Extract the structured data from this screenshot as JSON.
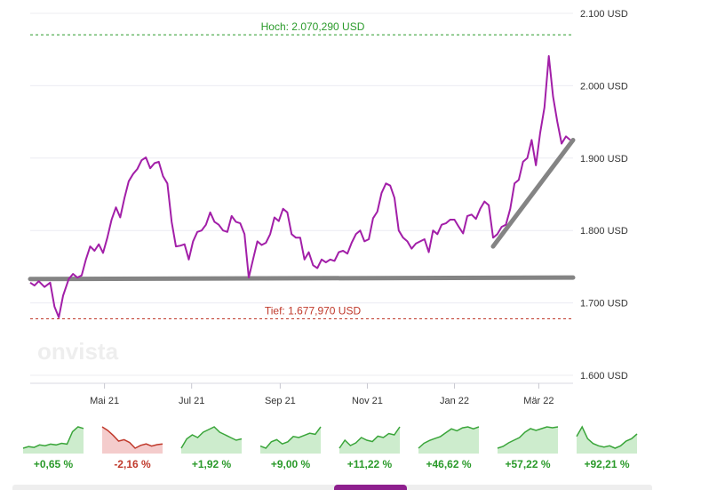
{
  "chart_data": {
    "type": "line",
    "watermark": "onvista",
    "y_unit": "USD",
    "ylim": [
      1600,
      2100
    ],
    "y_ticks": [
      "2.100 USD",
      "2.000 USD",
      "1.900 USD",
      "1.800 USD",
      "1.700 USD",
      "1.600 USD"
    ],
    "y_tick_values": [
      2100,
      2000,
      1900,
      1800,
      1700,
      1600
    ],
    "x_ticks": [
      "Mai 21",
      "Jul 21",
      "Sep 21",
      "Nov 21",
      "Jan 22",
      "Mär 22"
    ],
    "x_tick_dates": [
      "2021-05-01",
      "2021-07-01",
      "2021-09-01",
      "2021-11-01",
      "2022-01-01",
      "2022-03-01"
    ],
    "xlim": [
      "2021-03-10",
      "2022-03-25"
    ],
    "high": {
      "label": "Hoch: 2.070,290 USD",
      "value": 2070.29,
      "color": "#2a9a2a"
    },
    "low": {
      "label": "Tief: 1.677,970 USD",
      "value": 1677.97,
      "color": "#c0392b"
    },
    "series": [
      {
        "color": "#a21fa8",
        "points": [
          [
            "2021-03-10",
            1728
          ],
          [
            "2021-03-13",
            1724
          ],
          [
            "2021-03-16",
            1730
          ],
          [
            "2021-03-20",
            1722
          ],
          [
            "2021-03-24",
            1728
          ],
          [
            "2021-03-27",
            1695
          ],
          [
            "2021-03-30",
            1680
          ],
          [
            "2021-04-02",
            1710
          ],
          [
            "2021-04-06",
            1733
          ],
          [
            "2021-04-09",
            1740
          ],
          [
            "2021-04-12",
            1735
          ],
          [
            "2021-04-15",
            1738
          ],
          [
            "2021-04-18",
            1760
          ],
          [
            "2021-04-21",
            1778
          ],
          [
            "2021-04-24",
            1772
          ],
          [
            "2021-04-27",
            1781
          ],
          [
            "2021-04-30",
            1769
          ],
          [
            "2021-05-03",
            1790
          ],
          [
            "2021-05-06",
            1815
          ],
          [
            "2021-05-09",
            1832
          ],
          [
            "2021-05-12",
            1818
          ],
          [
            "2021-05-15",
            1845
          ],
          [
            "2021-05-18",
            1868
          ],
          [
            "2021-05-21",
            1878
          ],
          [
            "2021-05-24",
            1885
          ],
          [
            "2021-05-27",
            1897
          ],
          [
            "2021-05-30",
            1901
          ],
          [
            "2021-06-02",
            1886
          ],
          [
            "2021-06-05",
            1893
          ],
          [
            "2021-06-08",
            1895
          ],
          [
            "2021-06-11",
            1875
          ],
          [
            "2021-06-14",
            1865
          ],
          [
            "2021-06-17",
            1812
          ],
          [
            "2021-06-20",
            1778
          ],
          [
            "2021-06-23",
            1779
          ],
          [
            "2021-06-26",
            1781
          ],
          [
            "2021-06-29",
            1760
          ],
          [
            "2021-07-02",
            1785
          ],
          [
            "2021-07-05",
            1798
          ],
          [
            "2021-07-08",
            1800
          ],
          [
            "2021-07-11",
            1808
          ],
          [
            "2021-07-14",
            1825
          ],
          [
            "2021-07-17",
            1812
          ],
          [
            "2021-07-20",
            1808
          ],
          [
            "2021-07-23",
            1800
          ],
          [
            "2021-07-26",
            1798
          ],
          [
            "2021-07-29",
            1820
          ],
          [
            "2021-08-01",
            1812
          ],
          [
            "2021-08-04",
            1810
          ],
          [
            "2021-08-07",
            1795
          ],
          [
            "2021-08-10",
            1735
          ],
          [
            "2021-08-13",
            1760
          ],
          [
            "2021-08-16",
            1785
          ],
          [
            "2021-08-19",
            1780
          ],
          [
            "2021-08-22",
            1783
          ],
          [
            "2021-08-25",
            1795
          ],
          [
            "2021-08-28",
            1818
          ],
          [
            "2021-08-31",
            1813
          ],
          [
            "2021-09-03",
            1830
          ],
          [
            "2021-09-06",
            1825
          ],
          [
            "2021-09-09",
            1795
          ],
          [
            "2021-09-12",
            1790
          ],
          [
            "2021-09-15",
            1790
          ],
          [
            "2021-09-18",
            1760
          ],
          [
            "2021-09-21",
            1770
          ],
          [
            "2021-09-24",
            1752
          ],
          [
            "2021-09-27",
            1748
          ],
          [
            "2021-09-30",
            1760
          ],
          [
            "2021-10-03",
            1756
          ],
          [
            "2021-10-06",
            1760
          ],
          [
            "2021-10-09",
            1758
          ],
          [
            "2021-10-12",
            1770
          ],
          [
            "2021-10-15",
            1772
          ],
          [
            "2021-10-18",
            1768
          ],
          [
            "2021-10-21",
            1783
          ],
          [
            "2021-10-24",
            1795
          ],
          [
            "2021-10-27",
            1800
          ],
          [
            "2021-10-30",
            1785
          ],
          [
            "2021-11-02",
            1788
          ],
          [
            "2021-11-05",
            1817
          ],
          [
            "2021-11-08",
            1826
          ],
          [
            "2021-11-11",
            1852
          ],
          [
            "2021-11-14",
            1865
          ],
          [
            "2021-11-17",
            1862
          ],
          [
            "2021-11-20",
            1845
          ],
          [
            "2021-11-23",
            1800
          ],
          [
            "2021-11-26",
            1790
          ],
          [
            "2021-11-29",
            1785
          ],
          [
            "2021-12-02",
            1775
          ],
          [
            "2021-12-05",
            1782
          ],
          [
            "2021-12-08",
            1785
          ],
          [
            "2021-12-11",
            1788
          ],
          [
            "2021-12-14",
            1770
          ],
          [
            "2021-12-17",
            1800
          ],
          [
            "2021-12-20",
            1795
          ],
          [
            "2021-12-23",
            1808
          ],
          [
            "2021-12-26",
            1810
          ],
          [
            "2021-12-29",
            1815
          ],
          [
            "2022-01-01",
            1815
          ],
          [
            "2022-01-04",
            1805
          ],
          [
            "2022-01-07",
            1796
          ],
          [
            "2022-01-10",
            1820
          ],
          [
            "2022-01-13",
            1822
          ],
          [
            "2022-01-16",
            1816
          ],
          [
            "2022-01-19",
            1830
          ],
          [
            "2022-01-22",
            1840
          ],
          [
            "2022-01-25",
            1835
          ],
          [
            "2022-01-28",
            1790
          ],
          [
            "2022-01-31",
            1795
          ],
          [
            "2022-02-03",
            1805
          ],
          [
            "2022-02-06",
            1808
          ],
          [
            "2022-02-09",
            1830
          ],
          [
            "2022-02-12",
            1865
          ],
          [
            "2022-02-15",
            1870
          ],
          [
            "2022-02-18",
            1895
          ],
          [
            "2022-02-21",
            1900
          ],
          [
            "2022-02-24",
            1925
          ],
          [
            "2022-02-27",
            1890
          ],
          [
            "2022-03-02",
            1935
          ],
          [
            "2022-03-05",
            1970
          ],
          [
            "2022-03-08",
            2041
          ],
          [
            "2022-03-11",
            1985
          ],
          [
            "2022-03-14",
            1950
          ],
          [
            "2022-03-17",
            1920
          ],
          [
            "2022-03-20",
            1930
          ],
          [
            "2022-03-23",
            1925
          ]
        ]
      }
    ],
    "trend_lines": [
      {
        "from": [
          "2021-03-10",
          1733
        ],
        "to": [
          "2022-03-25",
          1735
        ],
        "color": "#777777"
      },
      {
        "from": [
          "2022-01-28",
          1778
        ],
        "to": [
          "2022-03-25",
          1925
        ],
        "color": "#777777"
      }
    ]
  },
  "period_sparks": [
    {
      "label": "+0,65 %",
      "trend": "up",
      "shape": [
        40,
        42,
        41,
        44,
        43,
        45,
        44,
        46,
        45,
        60,
        66,
        64
      ]
    },
    {
      "label": "-2,16 %",
      "trend": "down",
      "shape": [
        60,
        55,
        48,
        40,
        42,
        38,
        30,
        34,
        36,
        33,
        35,
        36
      ]
    },
    {
      "label": "+1,92 %",
      "trend": "up",
      "shape": [
        48,
        55,
        58,
        56,
        60,
        62,
        64,
        60,
        58,
        56,
        54,
        55
      ]
    },
    {
      "label": "+9,00 %",
      "trend": "up",
      "shape": [
        46,
        44,
        50,
        52,
        48,
        50,
        55,
        54,
        56,
        58,
        57,
        64
      ]
    },
    {
      "label": "+11,22 %",
      "trend": "up",
      "shape": [
        44,
        50,
        46,
        48,
        52,
        50,
        49,
        53,
        52,
        55,
        54,
        60
      ]
    },
    {
      "label": "+46,62 %",
      "trend": "up",
      "shape": [
        40,
        45,
        48,
        50,
        52,
        56,
        60,
        58,
        61,
        62,
        60,
        62
      ]
    },
    {
      "label": "+57,22 %",
      "trend": "up",
      "shape": [
        38,
        40,
        44,
        47,
        50,
        56,
        60,
        58,
        60,
        62,
        61,
        62
      ]
    },
    {
      "label": "+92,21 %",
      "trend": "up",
      "shape": [
        54,
        62,
        52,
        48,
        46,
        45,
        46,
        44,
        46,
        50,
        52,
        56
      ]
    }
  ]
}
